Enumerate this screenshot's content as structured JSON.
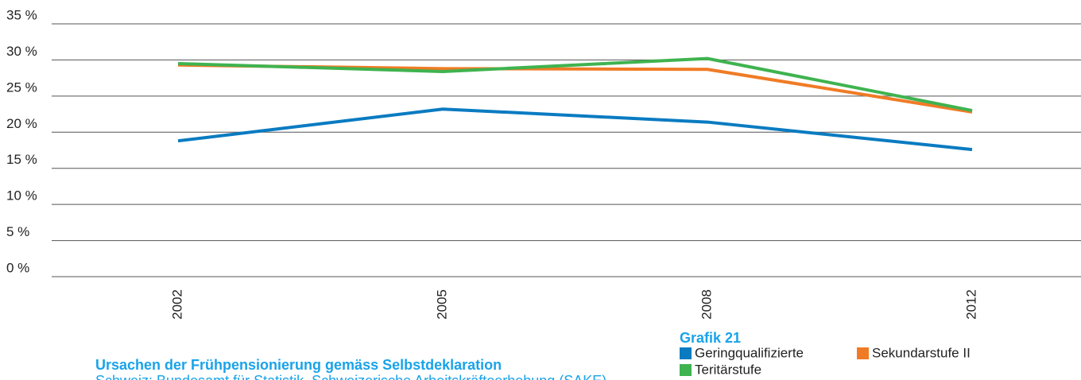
{
  "chart_data": {
    "type": "line",
    "heading": "Grafik 21",
    "title": "Ursachen der Frühpensionierung gemäss Selbstdeklaration",
    "subtitle": "Schweiz: Bundesamt für Statistik, Schweizerische Arbeitskräfteerhebung (SAKE)",
    "categories": [
      "2002",
      "2005",
      "2008",
      "2012"
    ],
    "series": [
      {
        "name": "Geringqualifizierte",
        "color": "#0a7bc1",
        "values": [
          18.8,
          23.2,
          21.4,
          17.6
        ]
      },
      {
        "name": "Sekundarstufe II",
        "color": "#f07b25",
        "values": [
          29.3,
          28.8,
          28.7,
          22.8
        ]
      },
      {
        "name": "Teritärstufe",
        "color": "#3fb34f",
        "values": [
          29.5,
          28.4,
          30.2,
          23.0
        ]
      }
    ],
    "ylim": [
      0,
      35
    ],
    "yticks": [
      {
        "value": 0,
        "label": "0 %"
      },
      {
        "value": 5,
        "label": "5 %"
      },
      {
        "value": 10,
        "label": "10 %"
      },
      {
        "value": 15,
        "label": "15 %"
      },
      {
        "value": 20,
        "label": "20 %"
      },
      {
        "value": 25,
        "label": "25 %"
      },
      {
        "value": 30,
        "label": "30 %"
      },
      {
        "value": 35,
        "label": "35 %"
      }
    ],
    "grid": true
  }
}
